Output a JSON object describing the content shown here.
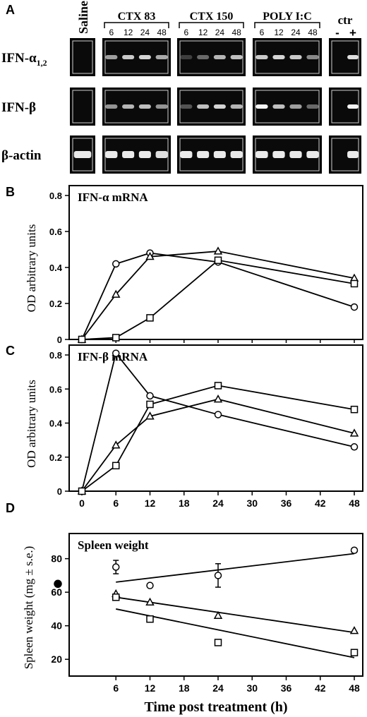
{
  "panel_labels": [
    "A",
    "B",
    "C",
    "D"
  ],
  "gel": {
    "groups": [
      {
        "name": "Saline",
        "lanes": []
      },
      {
        "name": "CTX 83",
        "lanes": [
          "6",
          "12",
          "24",
          "48"
        ]
      },
      {
        "name": "CTX 150",
        "lanes": [
          "6",
          "12",
          "24",
          "48"
        ]
      },
      {
        "name": "POLY I:C",
        "lanes": [
          "6",
          "12",
          "24",
          "48"
        ]
      },
      {
        "name": "ctr",
        "lanes": [
          "-",
          "+"
        ]
      }
    ],
    "rows": [
      {
        "label": "IFN-α",
        "subscript": "1,2"
      },
      {
        "label": "IFN-β",
        "subscript": ""
      },
      {
        "label": "β-actin",
        "subscript": ""
      }
    ],
    "band_intensity": [
      [
        [
          0.0
        ],
        [
          0.55,
          0.75,
          0.8,
          0.6
        ],
        [
          0.1,
          0.3,
          0.65,
          0.7
        ],
        [
          0.75,
          0.8,
          0.75,
          0.45
        ],
        [
          0.0,
          0.85
        ]
      ],
      [
        [
          0.0
        ],
        [
          0.5,
          0.65,
          0.7,
          0.5
        ],
        [
          0.2,
          0.7,
          0.8,
          0.65
        ],
        [
          0.95,
          0.7,
          0.55,
          0.3
        ],
        [
          0.0,
          0.95
        ]
      ],
      [
        [
          0.9
        ],
        [
          0.9,
          0.9,
          0.9,
          0.85
        ],
        [
          0.9,
          0.9,
          0.9,
          0.9
        ],
        [
          0.9,
          0.9,
          0.9,
          0.9
        ],
        [
          0.0,
          0.9
        ]
      ]
    ]
  },
  "chart_data": [
    {
      "type": "line",
      "panel": "B",
      "title": "IFN-α mRNA",
      "ylabel": "OD arbitrary units",
      "xlabel": "",
      "xlim": [
        0,
        48
      ],
      "ylim": [
        0,
        0.8
      ],
      "yticks": [
        "0",
        "0.2",
        "0.4",
        "0.6",
        "0.8"
      ],
      "series": [
        {
          "marker": "circle",
          "x": [
            0,
            6,
            12,
            24,
            48
          ],
          "y": [
            0,
            0.42,
            0.48,
            0.43,
            0.18
          ]
        },
        {
          "marker": "triangle",
          "x": [
            0,
            6,
            12,
            24,
            48
          ],
          "y": [
            0,
            0.25,
            0.46,
            0.49,
            0.34
          ]
        },
        {
          "marker": "square",
          "x": [
            0,
            6,
            12,
            24,
            48
          ],
          "y": [
            0,
            0.01,
            0.12,
            0.44,
            0.31
          ]
        }
      ]
    },
    {
      "type": "line",
      "panel": "C",
      "title": "IFN-β mRNA",
      "ylabel": "OD arbitrary units",
      "xlabel": "",
      "xlim": [
        0,
        48
      ],
      "ylim": [
        0,
        0.8
      ],
      "xticks": [
        "0",
        "6",
        "12",
        "18",
        "24",
        "30",
        "36",
        "42",
        "48"
      ],
      "yticks": [
        "0",
        "0.2",
        "0.4",
        "0.6",
        "0.8"
      ],
      "series": [
        {
          "marker": "circle",
          "x": [
            0,
            6,
            12,
            24,
            48
          ],
          "y": [
            0,
            0.81,
            0.56,
            0.45,
            0.26
          ]
        },
        {
          "marker": "triangle",
          "x": [
            0,
            6,
            12,
            24,
            48
          ],
          "y": [
            0,
            0.27,
            0.44,
            0.54,
            0.34
          ]
        },
        {
          "marker": "square",
          "x": [
            0,
            6,
            12,
            24,
            48
          ],
          "y": [
            0,
            0.15,
            0.51,
            0.62,
            0.48
          ]
        }
      ]
    },
    {
      "type": "scatter",
      "panel": "D",
      "title": "Spleen weight",
      "ylabel": "Spleen weight (mg ± s.e.)",
      "xlabel": "Time post treatment (h)",
      "xlim": [
        0,
        48
      ],
      "ylim": [
        10,
        95
      ],
      "xticks": [
        "6",
        "12",
        "18",
        "24",
        "30",
        "36",
        "42",
        "48"
      ],
      "yticks": [
        "20",
        "40",
        "60",
        "80"
      ],
      "baseline": {
        "marker": "filled-circle",
        "y": 65
      },
      "series": [
        {
          "marker": "circle",
          "x": [
            6,
            12,
            24,
            48
          ],
          "y": [
            75,
            64,
            70,
            85
          ],
          "err": [
            4,
            0,
            7,
            0
          ],
          "trend": [
            66,
            83
          ]
        },
        {
          "marker": "triangle",
          "x": [
            6,
            12,
            24,
            48
          ],
          "y": [
            59,
            54,
            46,
            37
          ],
          "err": [
            0,
            0,
            0,
            0
          ],
          "trend": [
            57,
            36
          ]
        },
        {
          "marker": "square",
          "x": [
            6,
            12,
            24,
            48
          ],
          "y": [
            57,
            44,
            30,
            24
          ],
          "err": [
            0,
            0,
            0,
            0
          ],
          "trend": [
            50,
            21
          ]
        }
      ]
    }
  ]
}
